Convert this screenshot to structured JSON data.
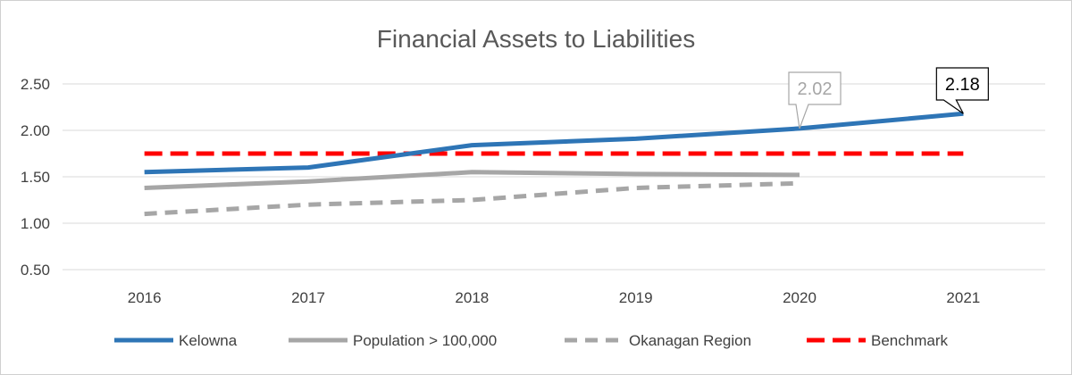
{
  "chart_data": {
    "type": "line",
    "title": "Financial Assets to Liabilities",
    "xlabel": "",
    "ylabel": "",
    "categories": [
      "2016",
      "2017",
      "2018",
      "2019",
      "2020",
      "2021"
    ],
    "y_ticks": [
      "0.50",
      "1.00",
      "1.50",
      "2.00",
      "2.50"
    ],
    "ylim": [
      0.5,
      2.5
    ],
    "grid": true,
    "legend_position": "bottom",
    "series": [
      {
        "name": "Kelowna",
        "values": [
          1.55,
          1.6,
          1.84,
          1.91,
          2.02,
          2.18
        ],
        "color": "#2e75b6",
        "style": "solid"
      },
      {
        "name": "Population > 100,000",
        "values": [
          1.38,
          1.45,
          1.55,
          1.53,
          1.52,
          null
        ],
        "color": "#a6a6a6",
        "style": "solid"
      },
      {
        "name": "Okanagan Region",
        "values": [
          1.1,
          1.2,
          1.25,
          1.38,
          1.43,
          null
        ],
        "color": "#a6a6a6",
        "style": "dashed"
      },
      {
        "name": "Benchmark",
        "values": [
          1.75,
          1.75,
          1.75,
          1.75,
          1.75,
          1.75
        ],
        "color": "#ff0000",
        "style": "dashed"
      }
    ],
    "annotations": [
      {
        "text": "2.02",
        "series": "Kelowna",
        "category": "2020",
        "color": "#a6a6a6"
      },
      {
        "text": "2.18",
        "series": "Kelowna",
        "category": "2021",
        "color": "#000000"
      }
    ]
  }
}
